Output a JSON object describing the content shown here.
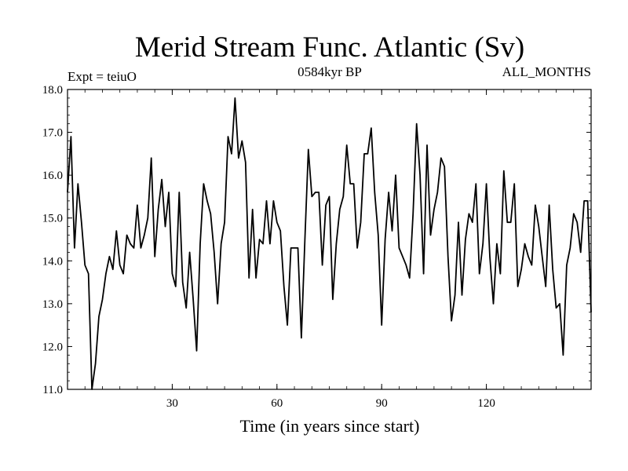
{
  "chart_data": {
    "type": "line",
    "title": "Merid Stream Func. Atlantic (Sv)",
    "subtitle_left": "Expt = teiuO",
    "subtitle_center": "0584kyr BP",
    "subtitle_right": "ALL_MONTHS",
    "xlabel": "Time (in years since start)",
    "ylabel": "",
    "xlim": [
      0,
      150
    ],
    "ylim": [
      11.0,
      18.0
    ],
    "xticks": [
      30,
      60,
      90,
      120
    ],
    "yticks": [
      11.0,
      12.0,
      13.0,
      14.0,
      15.0,
      16.0,
      17.0,
      18.0
    ],
    "grid": false,
    "series": [
      {
        "name": "Merid Stream Func. Atlantic",
        "x": [
          0,
          1,
          2,
          3,
          4,
          5,
          6,
          7,
          8,
          9,
          10,
          11,
          12,
          13,
          14,
          15,
          16,
          17,
          18,
          19,
          20,
          21,
          22,
          23,
          24,
          25,
          26,
          27,
          28,
          29,
          30,
          31,
          32,
          33,
          34,
          35,
          36,
          37,
          38,
          39,
          40,
          41,
          42,
          43,
          44,
          45,
          46,
          47,
          48,
          49,
          50,
          51,
          52,
          53,
          54,
          55,
          56,
          57,
          58,
          59,
          60,
          61,
          62,
          63,
          64,
          65,
          66,
          67,
          68,
          69,
          70,
          71,
          72,
          73,
          74,
          75,
          76,
          77,
          78,
          79,
          80,
          81,
          82,
          83,
          84,
          85,
          86,
          87,
          88,
          89,
          90,
          91,
          92,
          93,
          94,
          95,
          96,
          97,
          98,
          99,
          100,
          101,
          102,
          103,
          104,
          105,
          106,
          107,
          108,
          109,
          110,
          111,
          112,
          113,
          114,
          115,
          116,
          117,
          118,
          119,
          120,
          121,
          122,
          123,
          124,
          125,
          126,
          127,
          128,
          129,
          130,
          131,
          132,
          133,
          134,
          135,
          136,
          137,
          138,
          139,
          140,
          141,
          142,
          143,
          144,
          145,
          146,
          147,
          148,
          149,
          150
        ],
        "values": [
          15.6,
          16.9,
          14.3,
          15.8,
          14.9,
          13.9,
          13.7,
          11.0,
          11.6,
          12.7,
          13.1,
          13.7,
          14.1,
          13.8,
          14.7,
          13.9,
          13.7,
          14.6,
          14.4,
          14.3,
          15.3,
          14.3,
          14.6,
          15.0,
          16.4,
          14.1,
          15.2,
          15.9,
          14.8,
          15.6,
          13.7,
          13.4,
          15.6,
          13.5,
          12.9,
          14.2,
          13.1,
          11.9,
          14.4,
          15.8,
          15.4,
          15.1,
          14.2,
          13.0,
          14.4,
          14.9,
          16.9,
          16.5,
          17.8,
          16.4,
          16.8,
          16.3,
          13.6,
          15.2,
          13.6,
          14.5,
          14.4,
          15.4,
          14.4,
          15.4,
          14.9,
          14.7,
          13.4,
          12.5,
          14.3,
          14.3,
          14.3,
          12.2,
          14.5,
          16.6,
          15.5,
          15.6,
          15.6,
          13.9,
          15.3,
          15.5,
          13.1,
          14.4,
          15.2,
          15.5,
          16.7,
          15.8,
          15.8,
          14.3,
          14.9,
          16.5,
          16.5,
          17.1,
          15.6,
          14.6,
          12.5,
          14.5,
          15.6,
          14.7,
          16.0,
          14.3,
          14.1,
          13.9,
          13.6,
          15.1,
          17.2,
          16.0,
          13.7,
          16.7,
          14.6,
          15.2,
          15.6,
          16.4,
          16.2,
          14.1,
          12.6,
          13.2,
          14.9,
          13.2,
          14.5,
          15.1,
          14.9,
          15.8,
          13.7,
          14.4,
          15.8,
          14.1,
          13.0,
          14.4,
          13.7,
          16.1,
          14.9,
          14.9,
          15.8,
          13.4,
          13.8,
          14.4,
          14.1,
          13.9,
          15.3,
          14.8,
          14.1,
          13.4,
          15.3,
          13.8,
          12.9,
          13.0,
          11.8,
          13.9,
          14.3,
          15.1,
          14.9,
          14.2,
          15.4,
          15.4,
          12.8
        ]
      }
    ]
  }
}
